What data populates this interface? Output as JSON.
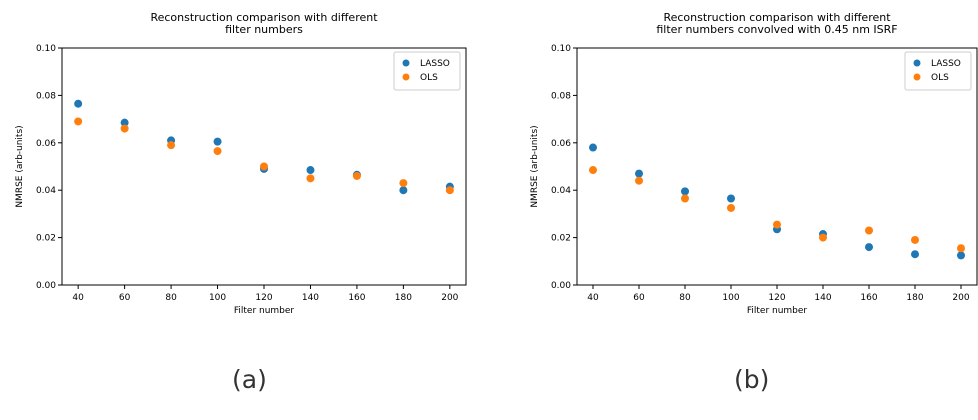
{
  "colors": {
    "lasso": "#1f77b4",
    "ols": "#ff7f0e"
  },
  "captions": [
    "(a)",
    "(b)"
  ],
  "chart_data": [
    {
      "type": "scatter",
      "title": [
        "Reconstruction comparison with different",
        "filter numbers"
      ],
      "xlabel": "Filter number",
      "ylabel": "NMRSE (arb-units)",
      "ylim": [
        0,
        0.1
      ],
      "xticks": [
        "40",
        "60",
        "80",
        "100",
        "120",
        "140",
        "160",
        "180",
        "200"
      ],
      "yticks": [
        "0.00",
        "0.02",
        "0.04",
        "0.06",
        "0.08",
        "0.10"
      ],
      "x": [
        40,
        60,
        80,
        100,
        120,
        140,
        160,
        180,
        200
      ],
      "legend_position": "top-right",
      "grid": false,
      "series": [
        {
          "name": "LASSO",
          "values": [
            0.0765,
            0.0685,
            0.061,
            0.0605,
            0.049,
            0.0485,
            0.0465,
            0.04,
            0.0415
          ]
        },
        {
          "name": "OLS",
          "values": [
            0.069,
            0.066,
            0.059,
            0.0565,
            0.05,
            0.045,
            0.046,
            0.043,
            0.04
          ]
        }
      ]
    },
    {
      "type": "scatter",
      "title": [
        "Reconstruction comparison with different",
        "filter numbers convolved with 0.45 nm ISRF"
      ],
      "xlabel": "Filter number",
      "ylabel": "NMRSE (arb-units)",
      "ylim": [
        0,
        0.1
      ],
      "xticks": [
        "40",
        "60",
        "80",
        "100",
        "120",
        "140",
        "160",
        "180",
        "200"
      ],
      "yticks": [
        "0.00",
        "0.02",
        "0.04",
        "0.06",
        "0.08",
        "0.10"
      ],
      "x": [
        40,
        60,
        80,
        100,
        120,
        140,
        160,
        180,
        200
      ],
      "legend_position": "top-right",
      "grid": false,
      "series": [
        {
          "name": "LASSO",
          "values": [
            0.058,
            0.047,
            0.0395,
            0.0365,
            0.0235,
            0.0215,
            0.016,
            0.013,
            0.0125
          ]
        },
        {
          "name": "OLS",
          "values": [
            0.0485,
            0.044,
            0.0365,
            0.0325,
            0.0255,
            0.02,
            0.023,
            0.019,
            0.0155
          ]
        }
      ]
    }
  ]
}
